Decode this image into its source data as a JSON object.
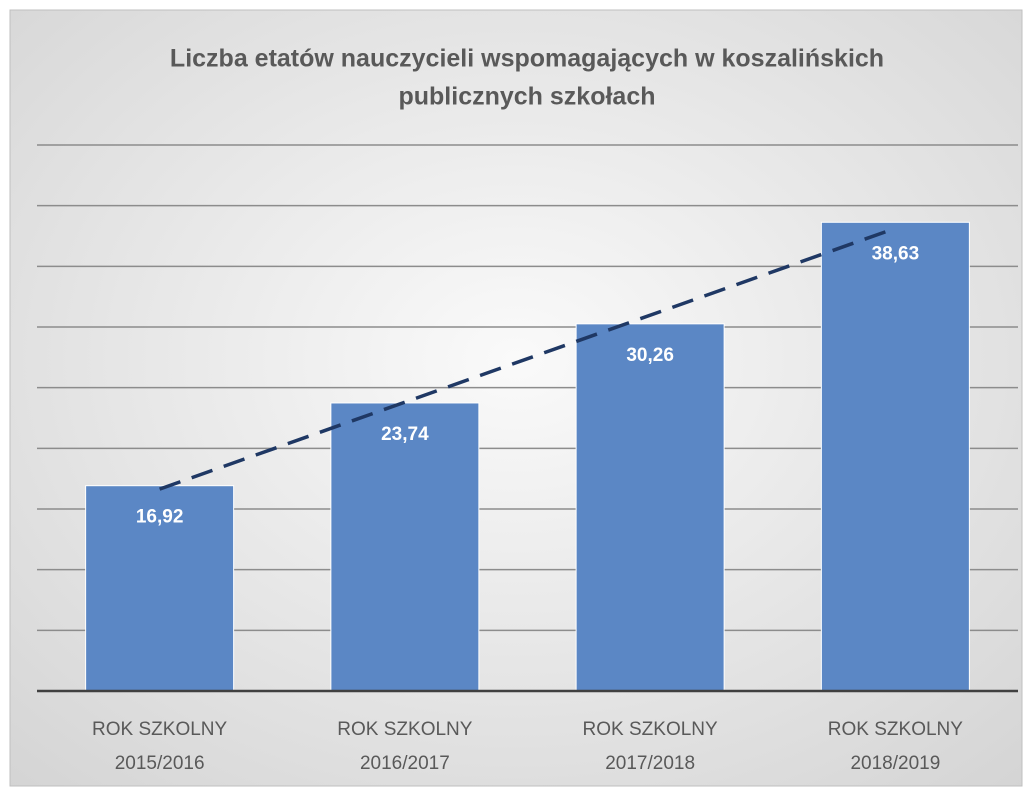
{
  "chart_data": {
    "type": "bar",
    "title": [
      "Liczba etatów nauczycieli wspomagających w koszalińskich",
      "publicznych szkołach"
    ],
    "categories": [
      [
        "ROK SZKOLNY",
        "2015/2016"
      ],
      [
        "ROK SZKOLNY",
        "2016/2017"
      ],
      [
        "ROK SZKOLNY",
        "2017/2018"
      ],
      [
        "ROK SZKOLNY",
        "2018/2019"
      ]
    ],
    "values": [
      16.92,
      23.74,
      30.26,
      38.63
    ],
    "value_labels": [
      "16,92",
      "23,74",
      "30,26",
      "38,63"
    ],
    "color": "#5b87c5",
    "ylim": [
      0,
      45
    ],
    "yticks": [
      0,
      5,
      10,
      15,
      20,
      25,
      30,
      35,
      40,
      45
    ],
    "grid": true,
    "trendline": {
      "type": "linear",
      "style": "dashed",
      "color": "#1f3864"
    }
  }
}
